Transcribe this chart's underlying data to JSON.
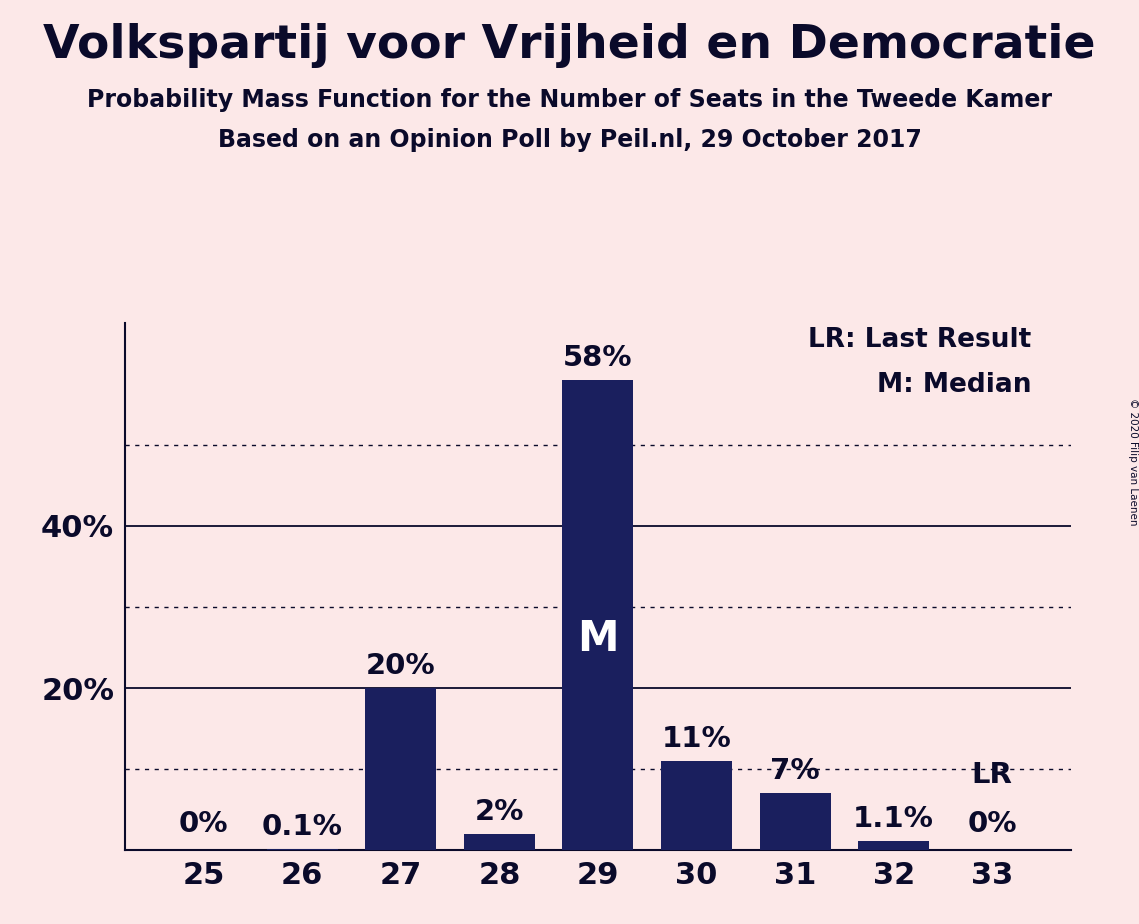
{
  "title": "Volkspartij voor Vrijheid en Democratie",
  "subtitle1": "Probability Mass Function for the Number of Seats in the Tweede Kamer",
  "subtitle2": "Based on an Opinion Poll by Peil.nl, 29 October 2017",
  "copyright": "© 2020 Filip van Laenen",
  "categories": [
    25,
    26,
    27,
    28,
    29,
    30,
    31,
    32,
    33
  ],
  "values": [
    0.0,
    0.1,
    20.0,
    2.0,
    58.0,
    11.0,
    7.0,
    1.1,
    0.0
  ],
  "labels": [
    "0%",
    "0.1%",
    "20%",
    "2%",
    "58%",
    "11%",
    "7%",
    "1.1%",
    "0%"
  ],
  "bar_color": "#1a1f5e",
  "background_color": "#fce8e8",
  "text_color": "#0a0a2a",
  "median_bar_idx": 4,
  "last_result_bar_idx": 8,
  "ytick_vals": [
    20,
    40
  ],
  "solid_lines": [
    0,
    20,
    40
  ],
  "dotted_lines": [
    10,
    30,
    50
  ],
  "ymax": 65,
  "legend_lr": "LR: Last Result",
  "legend_m": "M: Median",
  "lr_label": "LR",
  "m_label": "M",
  "title_fontsize": 34,
  "subtitle_fontsize": 17,
  "tick_fontsize": 22,
  "label_fontsize": 21
}
